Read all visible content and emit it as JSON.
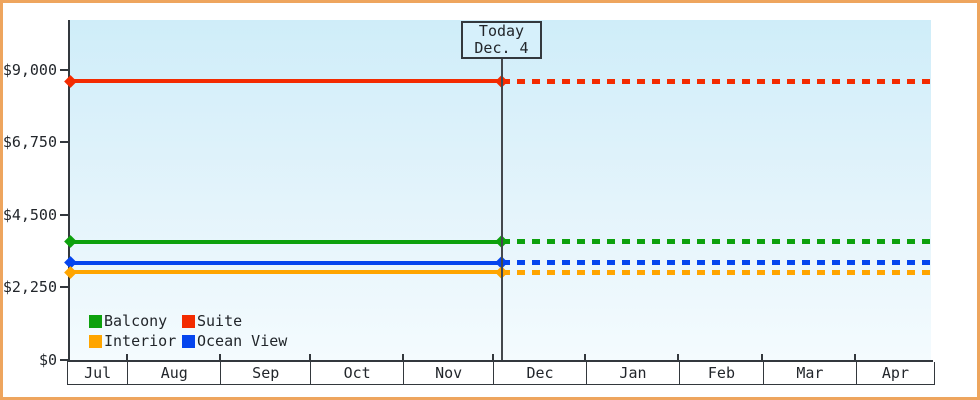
{
  "window": {
    "background": "#FFFFFF",
    "border_color": "#EEA55E"
  },
  "chart_data": {
    "type": "line",
    "title": "",
    "description": "Cruise cabin price tracker: flat price lines per cabin category, solid history before today and dotted forecast after today",
    "y_axis": {
      "ylim": [
        0,
        10550
      ],
      "grid": false,
      "ticks": [
        {
          "value": 9000,
          "label": "$9,000"
        },
        {
          "value": 6750,
          "label": "$6,750"
        },
        {
          "value": 4500,
          "label": "$4,500"
        },
        {
          "value": 2250,
          "label": "$2,250"
        },
        {
          "value": 0,
          "label": "$0"
        }
      ]
    },
    "x_axis": {
      "months": [
        {
          "label": "Jul",
          "days": 20
        },
        {
          "label": "Aug",
          "days": 31
        },
        {
          "label": "Sep",
          "days": 30
        },
        {
          "label": "Oct",
          "days": 31
        },
        {
          "label": "Nov",
          "days": 30
        },
        {
          "label": "Dec",
          "days": 31
        },
        {
          "label": "Jan",
          "days": 31
        },
        {
          "label": "Feb",
          "days": 28
        },
        {
          "label": "Mar",
          "days": 31
        },
        {
          "label": "Apr",
          "days": 26
        }
      ],
      "total_days": 289
    },
    "today_marker": {
      "line1": "Today",
      "line2": "Dec. 4",
      "days_from_start": 145
    },
    "series": [
      {
        "name": "Suite",
        "color": "#F32B00",
        "value": 8650
      },
      {
        "name": "Balcony",
        "color": "#0DA10D",
        "value": 3675
      },
      {
        "name": "Ocean View",
        "color": "#0545EE",
        "value": 3010
      },
      {
        "name": "Interior",
        "color": "#FFA500",
        "value": 2730
      }
    ],
    "legend": {
      "position": "bottom-left",
      "rows": [
        [
          "Balcony",
          "Suite"
        ],
        [
          "Interior",
          "Ocean View"
        ]
      ]
    },
    "style": {
      "solid_before_today": true,
      "dotted_after_today": true,
      "marker": "diamond",
      "axis_color": "#33383D",
      "text_color": "#22262B",
      "plot_bg_top": "#CFEDF9",
      "plot_bg_bottom": "#F4FBFE",
      "today_box_bg": "#D6F0FB"
    }
  }
}
